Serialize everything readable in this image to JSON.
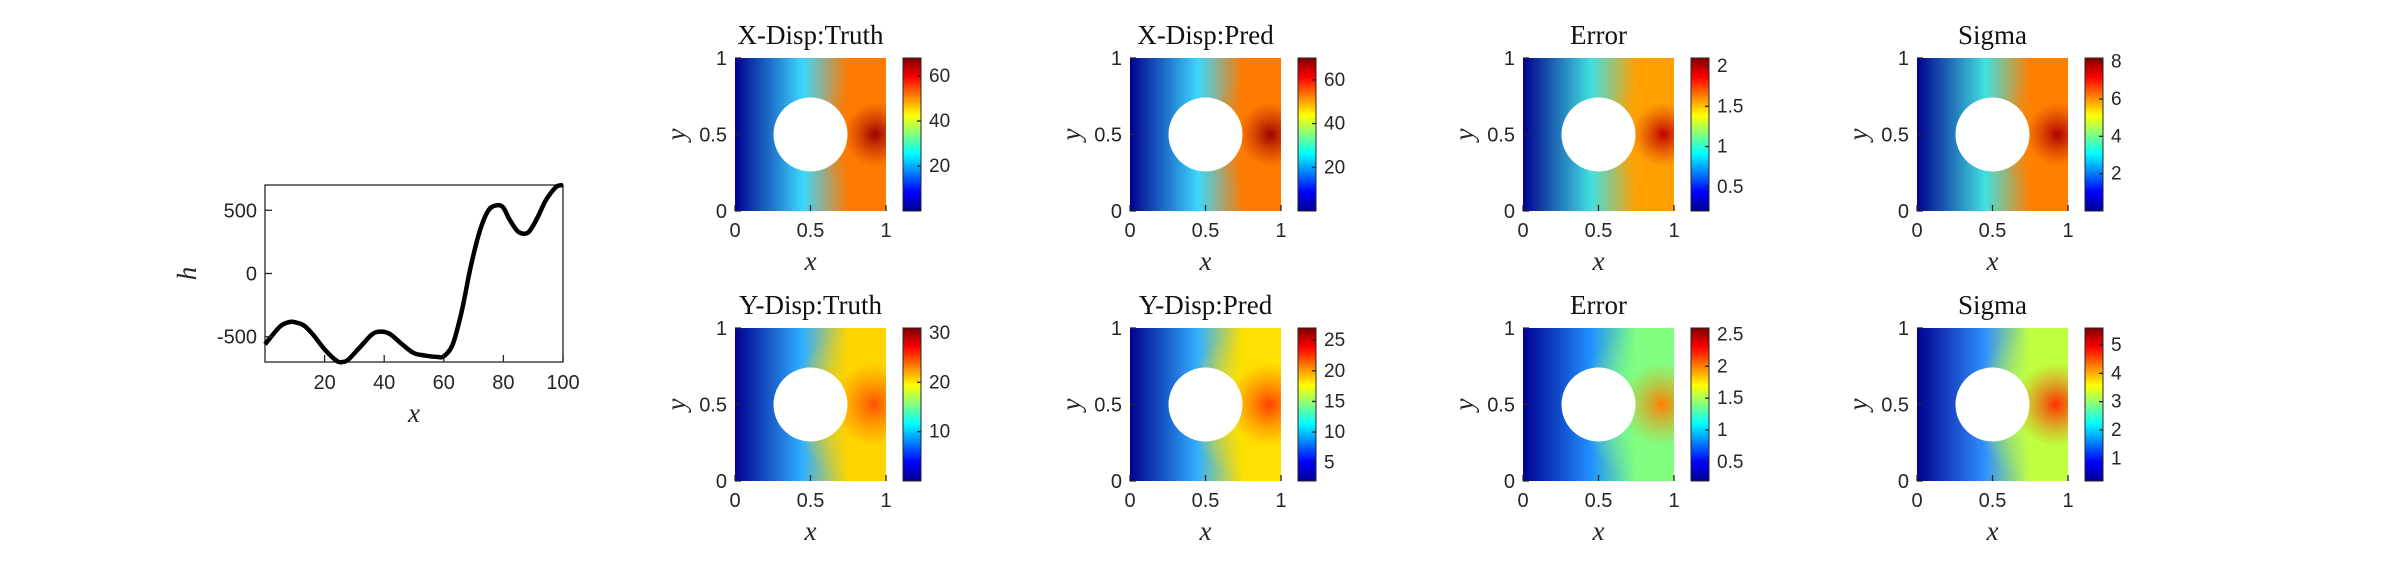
{
  "chart_data": [
    {
      "type": "line",
      "xlabel": "x",
      "ylabel": "h",
      "xlim": [
        0,
        100
      ],
      "ylim": [
        -700,
        700
      ],
      "xticks": [
        "20",
        "40",
        "60",
        "80",
        "100"
      ],
      "yticks": [
        "500",
        "0",
        "-500"
      ],
      "x": [
        0,
        5,
        8,
        10,
        13,
        16,
        20,
        24,
        26,
        28,
        32,
        36,
        39,
        42,
        46,
        50,
        54,
        58,
        60,
        63,
        66,
        69,
        72,
        75,
        78,
        80,
        82,
        85,
        88,
        90,
        92,
        94,
        96,
        98,
        100
      ],
      "values": [
        -560,
        -420,
        -385,
        -385,
        -410,
        -480,
        -600,
        -690,
        -700,
        -680,
        -580,
        -480,
        -460,
        -480,
        -560,
        -630,
        -650,
        -660,
        -655,
        -560,
        -300,
        50,
        330,
        500,
        540,
        520,
        430,
        330,
        320,
        380,
        470,
        570,
        640,
        690,
        700
      ]
    },
    {
      "type": "heatmap",
      "title": "X-Disp:Truth",
      "xlabel": "x",
      "ylabel": "y",
      "xticks": [
        "0",
        "0.5",
        "1"
      ],
      "yticks": [
        "0",
        "0.5",
        "1"
      ],
      "colorbar": {
        "min": 0,
        "max": 68,
        "ticks": [
          "20",
          "40",
          "60"
        ]
      }
    },
    {
      "type": "heatmap",
      "title": "X-Disp:Pred",
      "xlabel": "x",
      "ylabel": "y",
      "xticks": [
        "0",
        "0.5",
        "1"
      ],
      "yticks": [
        "0",
        "0.5",
        "1"
      ],
      "colorbar": {
        "min": 0,
        "max": 70,
        "ticks": [
          "20",
          "40",
          "60"
        ]
      }
    },
    {
      "type": "heatmap",
      "title": "Error",
      "xlabel": "x",
      "ylabel": "y",
      "xticks": [
        "0",
        "0.5",
        "1"
      ],
      "yticks": [
        "0",
        "0.5",
        "1"
      ],
      "colorbar": {
        "min": 0.2,
        "max": 2.1,
        "ticks": [
          "0.5",
          "1",
          "1.5",
          "2"
        ]
      }
    },
    {
      "type": "heatmap",
      "title": "Sigma",
      "xlabel": "x",
      "ylabel": "y",
      "xticks": [
        "0",
        "0.5",
        "1"
      ],
      "yticks": [
        "0",
        "0.5",
        "1"
      ],
      "colorbar": {
        "min": 0,
        "max": 8.2,
        "ticks": [
          "2",
          "4",
          "6",
          "8"
        ]
      }
    },
    {
      "type": "heatmap",
      "title": "Y-Disp:Truth",
      "xlabel": "x",
      "ylabel": "y",
      "xticks": [
        "0",
        "0.5",
        "1"
      ],
      "yticks": [
        "0",
        "0.5",
        "1"
      ],
      "colorbar": {
        "min": 0,
        "max": 31,
        "ticks": [
          "10",
          "20",
          "30"
        ]
      }
    },
    {
      "type": "heatmap",
      "title": "Y-Disp:Pred",
      "xlabel": "x",
      "ylabel": "y",
      "xticks": [
        "0",
        "0.5",
        "1"
      ],
      "yticks": [
        "0",
        "0.5",
        "1"
      ],
      "colorbar": {
        "min": 2,
        "max": 27,
        "ticks": [
          "5",
          "10",
          "15",
          "20",
          "25"
        ]
      }
    },
    {
      "type": "heatmap",
      "title": "Error",
      "xlabel": "x",
      "ylabel": "y",
      "xticks": [
        "0",
        "0.5",
        "1"
      ],
      "yticks": [
        "0",
        "0.5",
        "1"
      ],
      "colorbar": {
        "min": 0.2,
        "max": 2.6,
        "ticks": [
          "0.5",
          "1",
          "1.5",
          "2",
          "2.5"
        ]
      }
    },
    {
      "type": "heatmap",
      "title": "Sigma",
      "xlabel": "x",
      "ylabel": "y",
      "xticks": [
        "0",
        "0.5",
        "1"
      ],
      "yticks": [
        "0",
        "0.5",
        "1"
      ],
      "colorbar": {
        "min": 0.2,
        "max": 5.6,
        "ticks": [
          "1",
          "2",
          "3",
          "4",
          "5"
        ]
      }
    }
  ]
}
